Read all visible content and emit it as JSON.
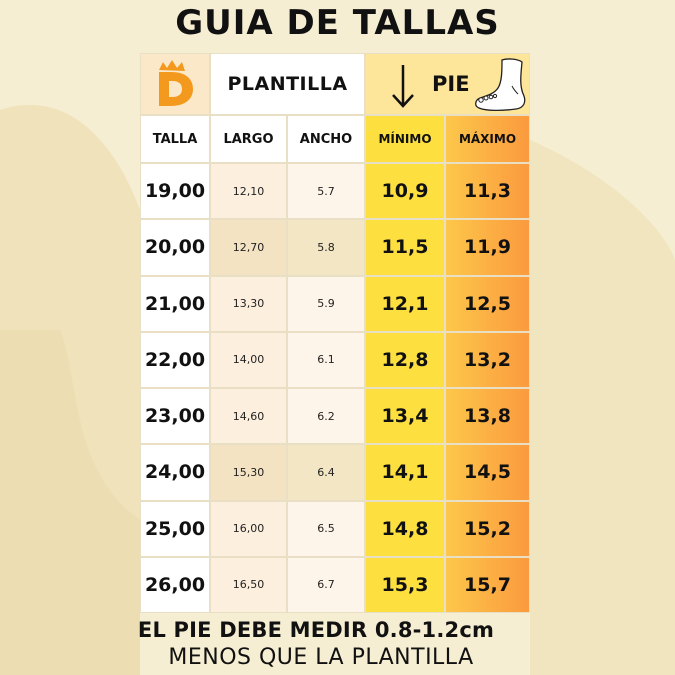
{
  "title": "GUIA DE TALLAS",
  "header": {
    "plantilla": "PLANTILLA",
    "pie": "PIE"
  },
  "columns": [
    "TALLA",
    "LARGO",
    "ANCHO",
    "MÍNIMO",
    "MÁXIMO"
  ],
  "rows": [
    {
      "talla": "19,00",
      "largo": "12,10",
      "ancho": "5.7",
      "min": "10,9",
      "max": "11,3"
    },
    {
      "talla": "20,00",
      "largo": "12,70",
      "ancho": "5.8",
      "min": "11,5",
      "max": "11,9"
    },
    {
      "talla": "21,00",
      "largo": "13,30",
      "ancho": "5.9",
      "min": "12,1",
      "max": "12,5"
    },
    {
      "talla": "22,00",
      "largo": "14,00",
      "ancho": "6.1",
      "min": "12,8",
      "max": "13,2"
    },
    {
      "talla": "23,00",
      "largo": "14,60",
      "ancho": "6.2",
      "min": "13,4",
      "max": "13,8"
    },
    {
      "talla": "24,00",
      "largo": "15,30",
      "ancho": "6.4",
      "min": "14,1",
      "max": "14,5"
    },
    {
      "talla": "25,00",
      "largo": "16,00",
      "ancho": "6.5",
      "min": "14,8",
      "max": "15,2"
    },
    {
      "talla": "26,00",
      "largo": "16,50",
      "ancho": "6.7",
      "min": "15,3",
      "max": "15,7"
    }
  ],
  "footer": {
    "line1": "EL PIE DEBE MEDIR 0.8-1.2cm",
    "line2": "MENOS QUE LA PLANTILLA"
  },
  "colors": {
    "background": "#f6eed2",
    "logo": "#f39a1e",
    "min_column": "#fddb3a",
    "max_column": "#fb9a3e"
  },
  "icons": {
    "logo": "logo-d-icon",
    "arrow": "arrow-down-icon",
    "foot": "foot-icon"
  }
}
